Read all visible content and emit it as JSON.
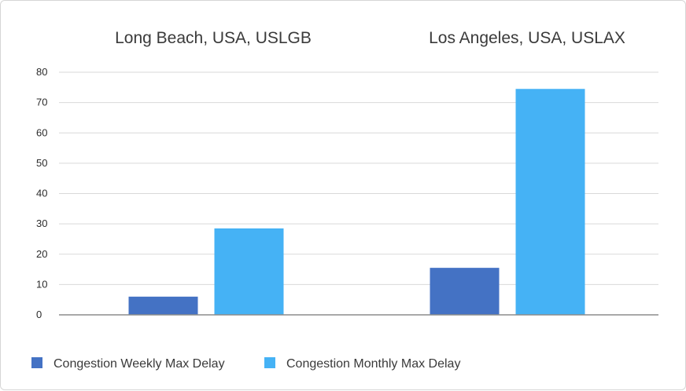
{
  "chart_data": {
    "type": "bar",
    "categories": [
      "Long Beach, USA, USLGB",
      "Los Angeles, USA, USLAX"
    ],
    "series": [
      {
        "name": "Congestion Weekly Max Delay",
        "values": [
          6,
          15.5
        ],
        "color": "#4472c4"
      },
      {
        "name": "Congestion Monthly Max Delay",
        "values": [
          28.5,
          74.5
        ],
        "color": "#45b2f5"
      }
    ],
    "ylim": [
      0,
      80
    ],
    "yticks": [
      0,
      10,
      20,
      30,
      40,
      50,
      60,
      70,
      80
    ],
    "grid": true,
    "legend": "bottom-left"
  }
}
